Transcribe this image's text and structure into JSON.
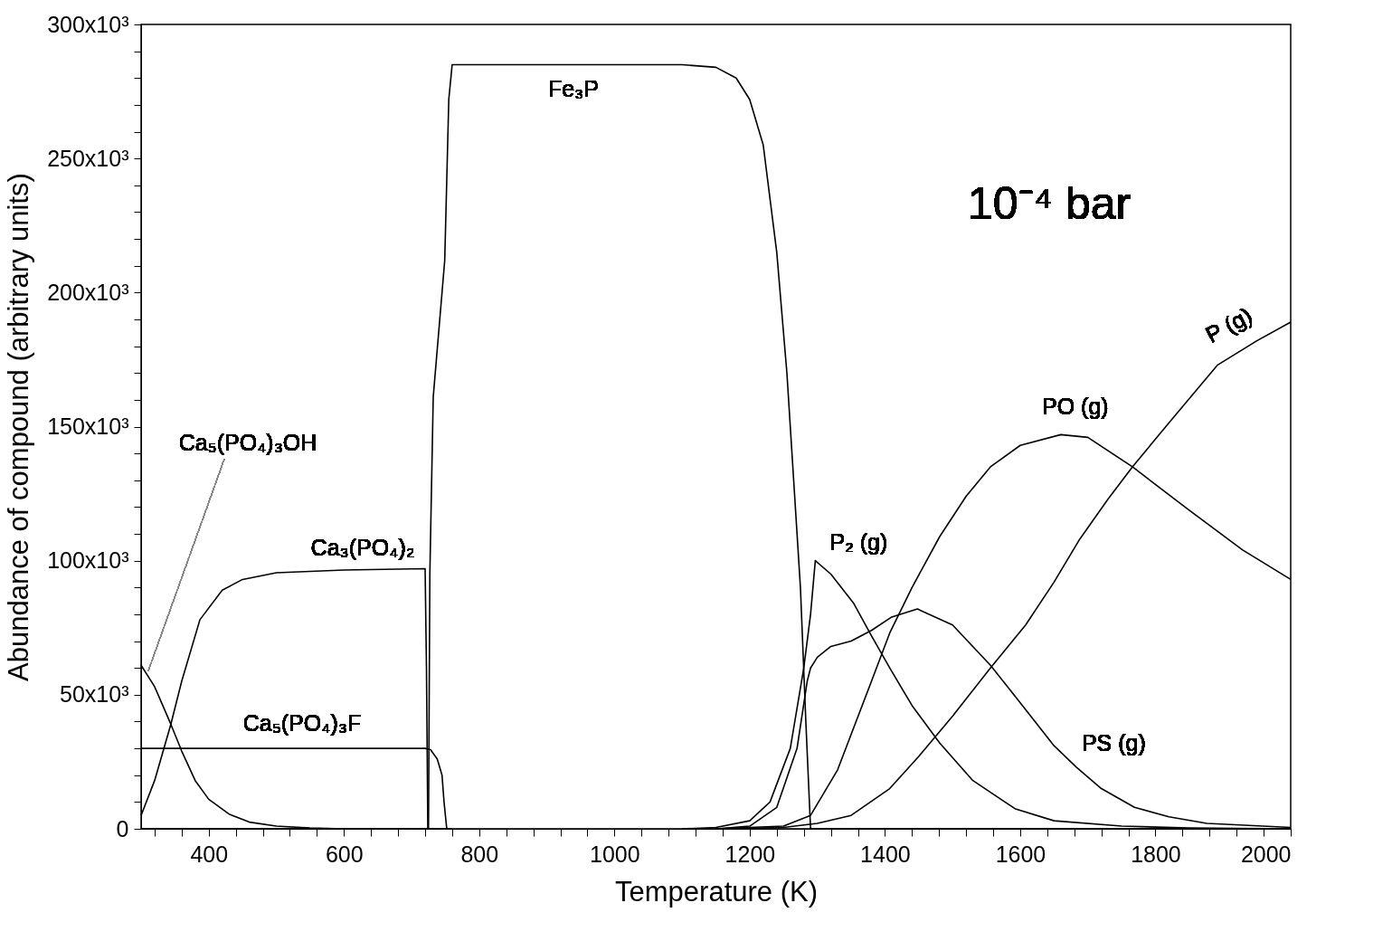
{
  "chart_data": {
    "type": "line",
    "xlabel": "Temperature (K)",
    "ylabel": "Abundance of compound (arbitrary units)",
    "xlim": [
      300,
      2000
    ],
    "ylim": [
      0,
      300000
    ],
    "xticks": [
      {
        "value": 320,
        "label": null
      },
      {
        "value": 360,
        "label": null
      },
      400,
      {
        "value": 440,
        "label": null
      },
      {
        "value": 480,
        "label": null
      },
      {
        "value": 520,
        "label": null
      },
      {
        "value": 560,
        "label": null
      },
      600,
      {
        "value": 640,
        "label": null
      },
      {
        "value": 680,
        "label": null
      },
      {
        "value": 720,
        "label": null
      },
      {
        "value": 760,
        "label": null
      },
      800,
      {
        "value": 840,
        "label": null
      },
      {
        "value": 880,
        "label": null
      },
      {
        "value": 920,
        "label": null
      },
      {
        "value": 960,
        "label": null
      },
      1000,
      {
        "value": 1040,
        "label": null
      },
      {
        "value": 1080,
        "label": null
      },
      {
        "value": 1120,
        "label": null
      },
      {
        "value": 1160,
        "label": null
      },
      1200,
      {
        "value": 1240,
        "label": null
      },
      {
        "value": 1280,
        "label": null
      },
      {
        "value": 1320,
        "label": null
      },
      {
        "value": 1360,
        "label": null
      },
      1400,
      {
        "value": 1440,
        "label": null
      },
      {
        "value": 1480,
        "label": null
      },
      {
        "value": 1520,
        "label": null
      },
      {
        "value": 1560,
        "label": null
      },
      1600,
      {
        "value": 1640,
        "label": null
      },
      {
        "value": 1680,
        "label": null
      },
      {
        "value": 1720,
        "label": null
      },
      {
        "value": 1760,
        "label": null
      },
      1800,
      {
        "value": 1840,
        "label": null
      },
      {
        "value": 1880,
        "label": null
      },
      {
        "value": 1920,
        "label": null
      },
      {
        "value": 1960,
        "label": null
      },
      2000
    ],
    "yticks": [
      0,
      {
        "value": 10000,
        "label": null
      },
      {
        "value": 20000,
        "label": null
      },
      {
        "value": 30000,
        "label": null
      },
      {
        "value": 40000,
        "label": null
      },
      {
        "value": 50000,
        "label": "50x10³"
      },
      {
        "value": 60000,
        "label": null
      },
      {
        "value": 70000,
        "label": null
      },
      {
        "value": 80000,
        "label": null
      },
      {
        "value": 90000,
        "label": null
      },
      {
        "value": 100000,
        "label": "100x10³"
      },
      {
        "value": 110000,
        "label": null
      },
      {
        "value": 120000,
        "label": null
      },
      {
        "value": 130000,
        "label": null
      },
      {
        "value": 140000,
        "label": null
      },
      {
        "value": 150000,
        "label": "150x10³"
      },
      {
        "value": 160000,
        "label": null
      },
      {
        "value": 170000,
        "label": null
      },
      {
        "value": 180000,
        "label": null
      },
      {
        "value": 190000,
        "label": null
      },
      {
        "value": 200000,
        "label": "200x10³"
      },
      {
        "value": 210000,
        "label": null
      },
      {
        "value": 220000,
        "label": null
      },
      {
        "value": 230000,
        "label": null
      },
      {
        "value": 240000,
        "label": null
      },
      {
        "value": 250000,
        "label": "250x10³"
      },
      {
        "value": 260000,
        "label": null
      },
      {
        "value": 270000,
        "label": null
      },
      {
        "value": 280000,
        "label": null
      },
      {
        "value": 290000,
        "label": null
      },
      {
        "value": 300000,
        "label": "300x10³"
      }
    ],
    "series": [
      {
        "name": "Ca₅(PO₄)₃OH",
        "color": "#000000",
        "x": [
          300,
          320,
          344,
          360,
          380,
          400,
          430,
          460,
          500,
          550,
          600,
          700
        ],
        "values": [
          61000,
          53000,
          39000,
          29000,
          18000,
          11000,
          5500,
          2500,
          1000,
          300,
          0,
          0
        ]
      },
      {
        "name": "Ca₃(PO₄)₂",
        "color": "#000000",
        "x": [
          300,
          320,
          344,
          360,
          387,
          420,
          450,
          500,
          600,
          720,
          722,
          724,
          760
        ],
        "values": [
          5000,
          18000,
          39000,
          55000,
          78000,
          89000,
          93000,
          95500,
          96500,
          97000,
          60000,
          0,
          0
        ]
      },
      {
        "name": "Ca₅(PO₄)₃F",
        "color": "#000000",
        "x": [
          300,
          720,
          728,
          738,
          745,
          748,
          752,
          760
        ],
        "values": [
          30000,
          30000,
          29500,
          26000,
          20000,
          10000,
          0,
          0
        ]
      },
      {
        "name": "Fe₃P",
        "color": "#000000",
        "x": [
          300,
          725,
          727,
          732,
          749,
          755,
          760,
          1100,
          1150,
          1180,
          1200,
          1220,
          1240,
          1255,
          1265,
          1275,
          1283,
          1290,
          2000
        ],
        "values": [
          0,
          0,
          95000,
          161000,
          212000,
          272000,
          285000,
          285000,
          284000,
          280000,
          272000,
          255000,
          215000,
          170000,
          130000,
          90000,
          40000,
          0,
          0
        ]
      },
      {
        "name": "P₂ (g)",
        "color": "#000000",
        "x": [
          1100,
          1150,
          1200,
          1230,
          1260,
          1280,
          1290,
          1297,
          1320,
          1354,
          1380,
          1407,
          1440,
          1481,
          1530,
          1593,
          1650,
          1750,
          1850,
          2000
        ],
        "values": [
          0,
          500,
          3000,
          10000,
          30000,
          60000,
          80000,
          100000,
          95000,
          84000,
          72000,
          60000,
          46000,
          32000,
          18000,
          7400,
          3000,
          1000,
          300,
          0
        ]
      },
      {
        "name": "PS (g)",
        "color": "#000000",
        "x": [
          1150,
          1200,
          1240,
          1270,
          1285,
          1290,
          1300,
          1320,
          1350,
          1380,
          1410,
          1448,
          1500,
          1556,
          1608,
          1650,
          1683,
          1720,
          1769,
          1820,
          1876,
          2000
        ],
        "values": [
          0,
          1000,
          8000,
          30000,
          55000,
          60000,
          64000,
          68000,
          70000,
          74000,
          79000,
          82000,
          76000,
          61000,
          44500,
          31000,
          23000,
          15000,
          8000,
          4500,
          2000,
          500
        ]
      },
      {
        "name": "PO (g)",
        "color": "#000000",
        "x": [
          1150,
          1250,
          1290,
          1330,
          1380,
          1407,
          1440,
          1481,
          1520,
          1556,
          1600,
          1660,
          1700,
          1766,
          1849,
          1929,
          2000
        ],
        "values": [
          0,
          1000,
          5000,
          22000,
          55000,
          73000,
          90000,
          109000,
          124000,
          135000,
          143000,
          147000,
          146000,
          135000,
          119000,
          104000,
          93000
        ]
      },
      {
        "name": "P (g)",
        "color": "#000000",
        "x": [
          1150,
          1250,
          1300,
          1350,
          1407,
          1450,
          1500,
          1556,
          1608,
          1650,
          1688,
          1730,
          1766,
          1822,
          1892,
          1950,
          2000
        ],
        "values": [
          0,
          500,
          2000,
          5000,
          15000,
          27000,
          42000,
          60000,
          76000,
          92000,
          108000,
          123000,
          135000,
          152000,
          173000,
          182000,
          189000
        ]
      }
    ],
    "annotations": [
      "10⁻⁴ bar"
    ]
  }
}
